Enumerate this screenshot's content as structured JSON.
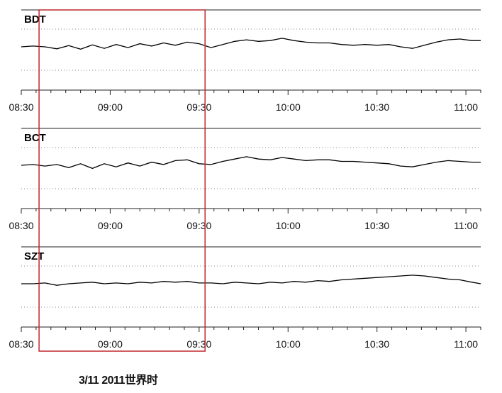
{
  "chart_data": {
    "type": "line",
    "panel_count": 3,
    "x_range": [
      "08:30",
      "11:05"
    ],
    "x_ticks": [
      "08:30",
      "09:00",
      "09:30",
      "10:00",
      "10:30",
      "11:00"
    ],
    "grid": "dotted horizontal",
    "highlight_window": {
      "start": "08:36",
      "end": "09:32",
      "color": "#c0282e"
    },
    "trace_color": "#000000",
    "panels": [
      {
        "name": "BDT",
        "series": [
          {
            "t": "08:30",
            "v": 0.0
          },
          {
            "t": "08:34",
            "v": 0.02
          },
          {
            "t": "08:38",
            "v": 0.0
          },
          {
            "t": "08:42",
            "v": -0.05
          },
          {
            "t": "08:46",
            "v": 0.03
          },
          {
            "t": "08:50",
            "v": -0.06
          },
          {
            "t": "08:54",
            "v": 0.05
          },
          {
            "t": "08:58",
            "v": -0.04
          },
          {
            "t": "09:02",
            "v": 0.06
          },
          {
            "t": "09:06",
            "v": -0.02
          },
          {
            "t": "09:10",
            "v": 0.08
          },
          {
            "t": "09:14",
            "v": 0.02
          },
          {
            "t": "09:18",
            "v": 0.1
          },
          {
            "t": "09:22",
            "v": 0.04
          },
          {
            "t": "09:26",
            "v": 0.12
          },
          {
            "t": "09:30",
            "v": 0.08
          },
          {
            "t": "09:34",
            "v": -0.02
          },
          {
            "t": "09:38",
            "v": 0.06
          },
          {
            "t": "09:42",
            "v": 0.14
          },
          {
            "t": "09:46",
            "v": 0.18
          },
          {
            "t": "09:50",
            "v": 0.14
          },
          {
            "t": "09:54",
            "v": 0.16
          },
          {
            "t": "09:58",
            "v": 0.22
          },
          {
            "t": "10:02",
            "v": 0.16
          },
          {
            "t": "10:06",
            "v": 0.12
          },
          {
            "t": "10:10",
            "v": 0.1
          },
          {
            "t": "10:14",
            "v": 0.1
          },
          {
            "t": "10:18",
            "v": 0.06
          },
          {
            "t": "10:22",
            "v": 0.04
          },
          {
            "t": "10:26",
            "v": 0.06
          },
          {
            "t": "10:30",
            "v": 0.04
          },
          {
            "t": "10:34",
            "v": 0.06
          },
          {
            "t": "10:38",
            "v": 0.0
          },
          {
            "t": "10:42",
            "v": -0.04
          },
          {
            "t": "10:46",
            "v": 0.04
          },
          {
            "t": "10:50",
            "v": 0.12
          },
          {
            "t": "10:54",
            "v": 0.18
          },
          {
            "t": "10:58",
            "v": 0.2
          },
          {
            "t": "11:02",
            "v": 0.16
          },
          {
            "t": "11:05",
            "v": 0.16
          }
        ]
      },
      {
        "name": "BCT",
        "series": [
          {
            "t": "08:30",
            "v": 0.0
          },
          {
            "t": "08:34",
            "v": 0.02
          },
          {
            "t": "08:38",
            "v": -0.02
          },
          {
            "t": "08:42",
            "v": 0.02
          },
          {
            "t": "08:46",
            "v": -0.06
          },
          {
            "t": "08:50",
            "v": 0.04
          },
          {
            "t": "08:54",
            "v": -0.08
          },
          {
            "t": "08:58",
            "v": 0.04
          },
          {
            "t": "09:02",
            "v": -0.04
          },
          {
            "t": "09:06",
            "v": 0.06
          },
          {
            "t": "09:10",
            "v": -0.02
          },
          {
            "t": "09:14",
            "v": 0.08
          },
          {
            "t": "09:18",
            "v": 0.02
          },
          {
            "t": "09:22",
            "v": 0.12
          },
          {
            "t": "09:26",
            "v": 0.14
          },
          {
            "t": "09:30",
            "v": 0.04
          },
          {
            "t": "09:34",
            "v": 0.02
          },
          {
            "t": "09:38",
            "v": 0.1
          },
          {
            "t": "09:42",
            "v": 0.16
          },
          {
            "t": "09:46",
            "v": 0.22
          },
          {
            "t": "09:50",
            "v": 0.16
          },
          {
            "t": "09:54",
            "v": 0.14
          },
          {
            "t": "09:58",
            "v": 0.2
          },
          {
            "t": "10:02",
            "v": 0.16
          },
          {
            "t": "10:06",
            "v": 0.12
          },
          {
            "t": "10:10",
            "v": 0.14
          },
          {
            "t": "10:14",
            "v": 0.14
          },
          {
            "t": "10:18",
            "v": 0.1
          },
          {
            "t": "10:22",
            "v": 0.1
          },
          {
            "t": "10:26",
            "v": 0.08
          },
          {
            "t": "10:30",
            "v": 0.06
          },
          {
            "t": "10:34",
            "v": 0.04
          },
          {
            "t": "10:38",
            "v": -0.02
          },
          {
            "t": "10:42",
            "v": -0.04
          },
          {
            "t": "10:46",
            "v": 0.02
          },
          {
            "t": "10:50",
            "v": 0.08
          },
          {
            "t": "10:54",
            "v": 0.12
          },
          {
            "t": "10:58",
            "v": 0.1
          },
          {
            "t": "11:02",
            "v": 0.08
          },
          {
            "t": "11:05",
            "v": 0.08
          }
        ]
      },
      {
        "name": "SZT",
        "series": [
          {
            "t": "08:30",
            "v": 0.0
          },
          {
            "t": "08:34",
            "v": 0.0
          },
          {
            "t": "08:38",
            "v": 0.02
          },
          {
            "t": "08:42",
            "v": -0.04
          },
          {
            "t": "08:46",
            "v": 0.0
          },
          {
            "t": "08:50",
            "v": 0.02
          },
          {
            "t": "08:54",
            "v": 0.04
          },
          {
            "t": "08:58",
            "v": 0.0
          },
          {
            "t": "09:02",
            "v": 0.02
          },
          {
            "t": "09:06",
            "v": 0.0
          },
          {
            "t": "09:10",
            "v": 0.04
          },
          {
            "t": "09:14",
            "v": 0.02
          },
          {
            "t": "09:18",
            "v": 0.06
          },
          {
            "t": "09:22",
            "v": 0.04
          },
          {
            "t": "09:26",
            "v": 0.06
          },
          {
            "t": "09:30",
            "v": 0.02
          },
          {
            "t": "09:34",
            "v": 0.02
          },
          {
            "t": "09:38",
            "v": 0.0
          },
          {
            "t": "09:42",
            "v": 0.04
          },
          {
            "t": "09:46",
            "v": 0.02
          },
          {
            "t": "09:50",
            "v": 0.0
          },
          {
            "t": "09:54",
            "v": 0.04
          },
          {
            "t": "09:58",
            "v": 0.02
          },
          {
            "t": "10:02",
            "v": 0.06
          },
          {
            "t": "10:06",
            "v": 0.04
          },
          {
            "t": "10:10",
            "v": 0.08
          },
          {
            "t": "10:14",
            "v": 0.06
          },
          {
            "t": "10:18",
            "v": 0.1
          },
          {
            "t": "10:22",
            "v": 0.12
          },
          {
            "t": "10:26",
            "v": 0.14
          },
          {
            "t": "10:30",
            "v": 0.16
          },
          {
            "t": "10:34",
            "v": 0.18
          },
          {
            "t": "10:38",
            "v": 0.2
          },
          {
            "t": "10:42",
            "v": 0.22
          },
          {
            "t": "10:46",
            "v": 0.2
          },
          {
            "t": "10:50",
            "v": 0.16
          },
          {
            "t": "10:54",
            "v": 0.12
          },
          {
            "t": "10:58",
            "v": 0.1
          },
          {
            "t": "11:02",
            "v": 0.04
          },
          {
            "t": "11:05",
            "v": 0.0
          }
        ]
      }
    ]
  },
  "footer_label": "3/11 2011世界时"
}
